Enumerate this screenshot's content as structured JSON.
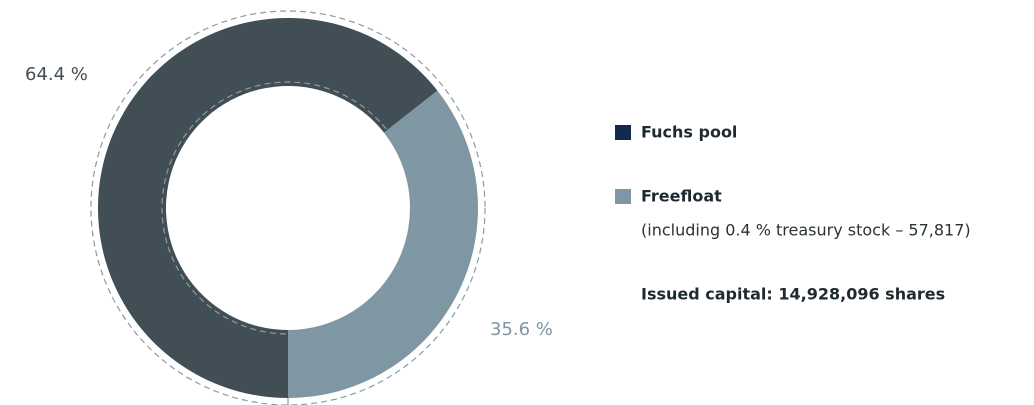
{
  "chart_data": {
    "type": "donut",
    "categories": [
      "Fuchs pool",
      "Freefloat"
    ],
    "values": [
      64.4,
      35.6
    ],
    "value_labels": [
      "64.4 %",
      "35.6 %"
    ],
    "colors": [
      "#414e55",
      "#7f97a3"
    ],
    "legend_colors": [
      "#0f2a4d",
      "#7f97a3"
    ],
    "annotations": [
      "(including 0.4 % treasury stock – 57,817)",
      "Issued capital: 14,928,096 shares"
    ]
  }
}
